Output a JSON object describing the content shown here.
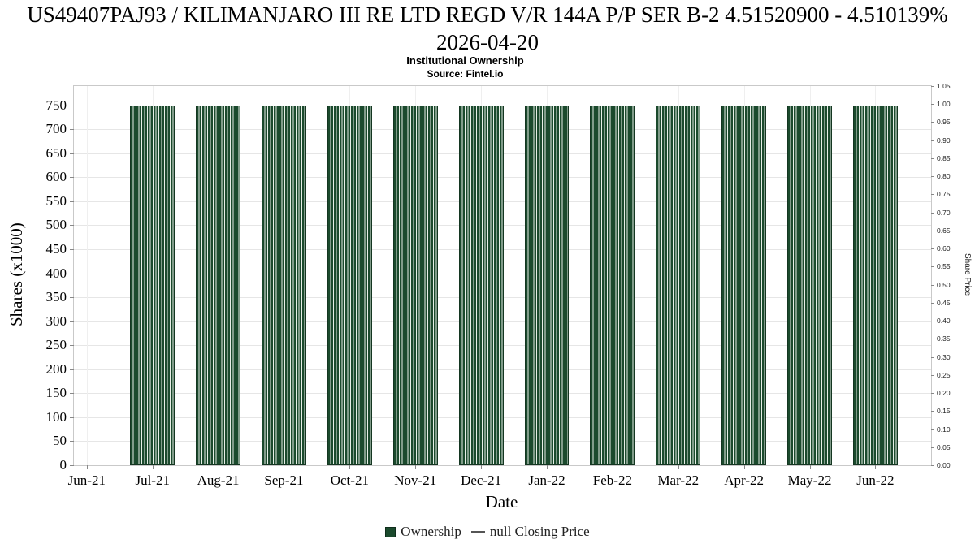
{
  "chart_data": {
    "type": "bar",
    "title": "US49407PAJ93 / KILIMANJARO III RE LTD REGD V/R 144A P/P SER B-2 4.51520900 - 4.510139% 2026-04-20",
    "subtitle": "Institutional Ownership",
    "source": "Source: Fintel.io",
    "xlabel": "Date",
    "ylabel_left": "Shares (x1000)",
    "ylabel_right": "Share Price",
    "x_ticks": [
      "Jun-21",
      "Jul-21",
      "Aug-21",
      "Sep-21",
      "Oct-21",
      "Nov-21",
      "Dec-21",
      "Jan-22",
      "Feb-22",
      "Mar-22",
      "Apr-22",
      "May-22",
      "Jun-22"
    ],
    "categories": [
      "Jul-21",
      "Aug-21",
      "Sep-21",
      "Oct-21",
      "Nov-21",
      "Dec-21",
      "Jan-22",
      "Feb-22",
      "Mar-22",
      "Apr-22",
      "May-22",
      "Jun-22"
    ],
    "series": [
      {
        "name": "Ownership",
        "values": [
          750,
          750,
          750,
          750,
          750,
          750,
          750,
          750,
          750,
          750,
          750,
          750
        ]
      }
    ],
    "ylim_left": [
      0,
      790
    ],
    "left_ticks": [
      0,
      50,
      100,
      150,
      200,
      250,
      300,
      350,
      400,
      450,
      500,
      550,
      600,
      650,
      700,
      750
    ],
    "right_ticks": [
      0.0,
      0.05,
      0.1,
      0.15,
      0.2,
      0.25,
      0.3,
      0.35,
      0.4,
      0.45,
      0.5,
      0.55,
      0.6,
      0.65,
      0.7,
      0.75,
      0.8,
      0.85,
      0.9,
      0.95,
      1.0,
      1.05
    ],
    "right_range": [
      0,
      1.05
    ],
    "grid": true,
    "legend_position": "bottom",
    "bar_color": "#1b4a2d",
    "legend": [
      {
        "label": "Ownership",
        "marker": "square",
        "color": "#1b4a2d"
      },
      {
        "label": "null Closing Price",
        "marker": "dash",
        "color": "#555555"
      }
    ]
  }
}
